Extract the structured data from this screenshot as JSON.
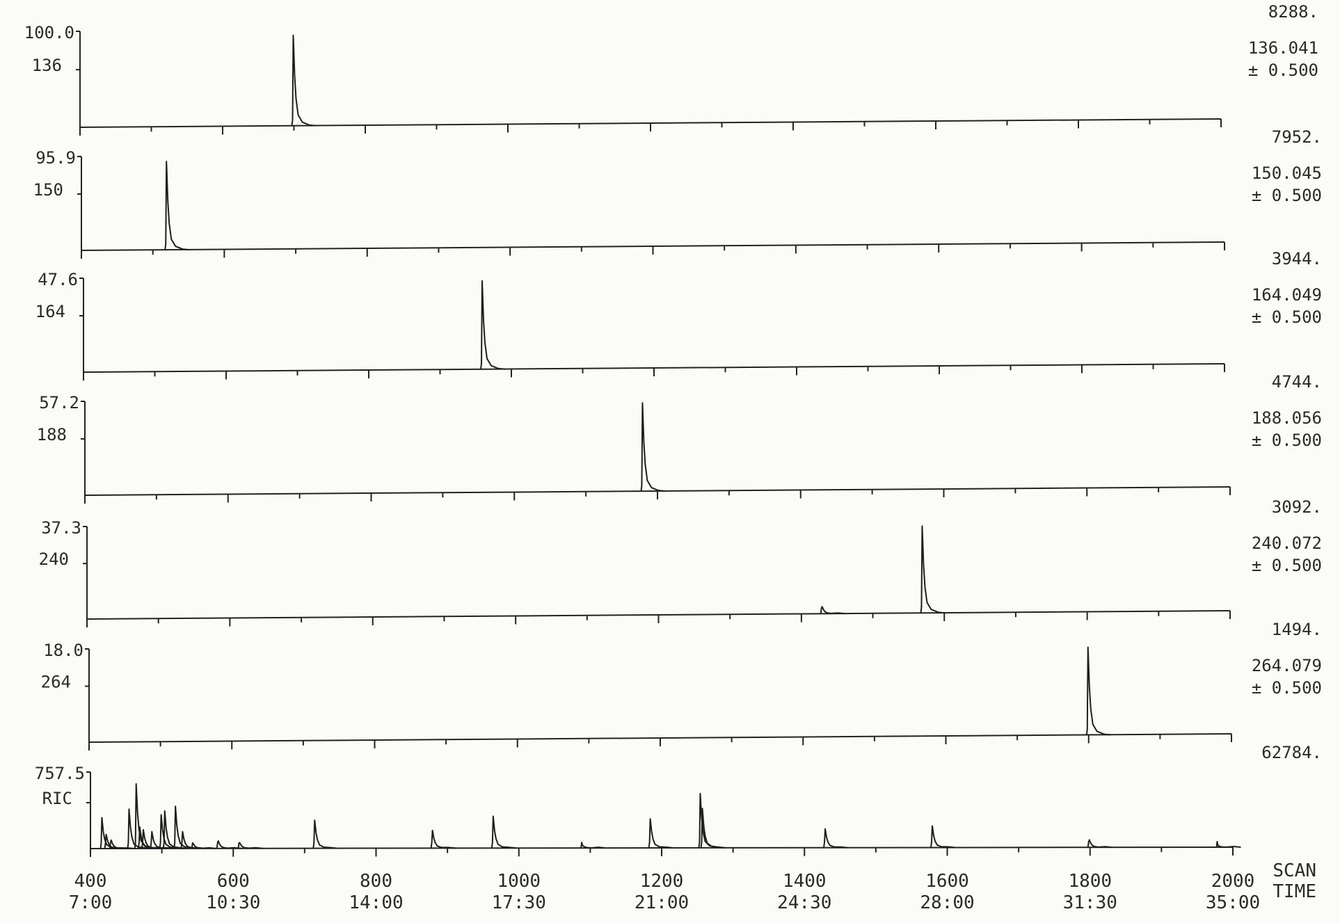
{
  "chart_data": {
    "type": "line",
    "x_axis": {
      "range": [
        400,
        2000
      ],
      "ticks": [
        400,
        600,
        800,
        1000,
        1200,
        1400,
        1600,
        1800,
        2000
      ],
      "scan_labels": [
        "400",
        "600",
        "800",
        "1000",
        "1200",
        "1400",
        "1600",
        "1800",
        "2000"
      ],
      "time_labels": [
        "7:00",
        "10:30",
        "14:00",
        "17:30",
        "21:00",
        "24:30",
        "28:00",
        "31:30",
        "35:00"
      ],
      "scan_unit": "SCAN",
      "time_unit": "TIME"
    },
    "panels": [
      {
        "scale_label": "100.0",
        "name_label": "136",
        "max_count": "8288.",
        "mass": "136.041",
        "tolerance": "± 0.500",
        "peaks": [
          {
            "scan": 700,
            "height": 100
          }
        ]
      },
      {
        "scale_label": "95.9",
        "name_label": "150",
        "max_count": "7952.",
        "mass": "150.045",
        "tolerance": "± 0.500",
        "peaks": [
          {
            "scan": 520,
            "height": 95.9
          }
        ]
      },
      {
        "scale_label": "47.6",
        "name_label": "164",
        "max_count": "3944.",
        "mass": "164.049",
        "tolerance": "± 0.500",
        "peaks": [
          {
            "scan": 960,
            "height": 47.6
          }
        ]
      },
      {
        "scale_label": "57.2",
        "name_label": "188",
        "max_count": "4744.",
        "mass": "188.056",
        "tolerance": "± 0.500",
        "peaks": [
          {
            "scan": 1180,
            "height": 57.2
          }
        ]
      },
      {
        "scale_label": "37.3",
        "name_label": "240",
        "max_count": "3092.",
        "mass": "240.072",
        "tolerance": "± 0.500",
        "peaks": [
          {
            "scan": 1430,
            "height": 3
          },
          {
            "scan": 1570,
            "height": 37.3
          }
        ]
      },
      {
        "scale_label": "18.0",
        "name_label": "264",
        "max_count": "1494.",
        "mass": "264.079",
        "tolerance": "± 0.500",
        "peaks": [
          {
            "scan": 1800,
            "height": 18.0
          }
        ]
      },
      {
        "scale_label": "757.5",
        "name_label": "RIC",
        "max_count": "62784.",
        "mass": "",
        "tolerance": "",
        "peaks": [
          {
            "scan": 417,
            "height": 330
          },
          {
            "scan": 423,
            "height": 150
          },
          {
            "scan": 430,
            "height": 90
          },
          {
            "scan": 455,
            "height": 420
          },
          {
            "scan": 465,
            "height": 690
          },
          {
            "scan": 470,
            "height": 230
          },
          {
            "scan": 475,
            "height": 200
          },
          {
            "scan": 487,
            "height": 180
          },
          {
            "scan": 500,
            "height": 360
          },
          {
            "scan": 505,
            "height": 400
          },
          {
            "scan": 520,
            "height": 450
          },
          {
            "scan": 530,
            "height": 180
          },
          {
            "scan": 545,
            "height": 50
          },
          {
            "scan": 580,
            "height": 80
          },
          {
            "scan": 610,
            "height": 60
          },
          {
            "scan": 715,
            "height": 300
          },
          {
            "scan": 880,
            "height": 190
          },
          {
            "scan": 965,
            "height": 340
          },
          {
            "scan": 1090,
            "height": 30
          },
          {
            "scan": 1185,
            "height": 310
          },
          {
            "scan": 1255,
            "height": 580
          },
          {
            "scan": 1258,
            "height": 420
          },
          {
            "scan": 1430,
            "height": 200
          },
          {
            "scan": 1580,
            "height": 230
          },
          {
            "scan": 1800,
            "height": 80
          },
          {
            "scan": 1980,
            "height": 20
          }
        ]
      }
    ]
  }
}
